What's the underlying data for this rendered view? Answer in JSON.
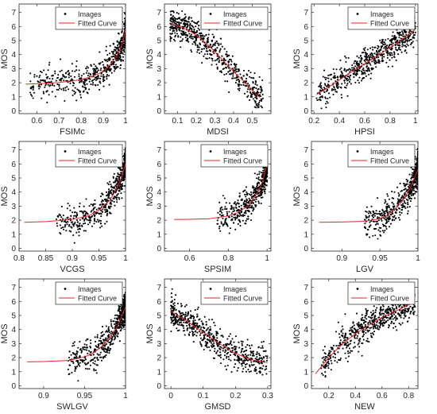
{
  "chart_data": [
    {
      "type": "scatter",
      "xlabel": "FSIMc",
      "ylabel": "MOS",
      "xlim": [
        0.52,
        1.0
      ],
      "ylim": [
        -0.2,
        7.6
      ],
      "xticks": [
        0.6,
        0.7,
        0.8,
        0.9,
        1
      ],
      "xtick_labels": [
        "0.6",
        "0.7",
        "0.8",
        "0.9",
        "1"
      ],
      "yticks": [
        0,
        1,
        2,
        3,
        4,
        5,
        6,
        7
      ],
      "legend": {
        "entries": [
          "Images",
          "Fitted Curve"
        ],
        "position": "top-right"
      },
      "points_extent": {
        "x": [
          0.57,
          1.0
        ]
      },
      "fitted_curve": {
        "x": [
          0.55,
          0.6,
          0.65,
          0.7,
          0.75,
          0.8,
          0.85,
          0.88,
          0.9,
          0.92,
          0.94,
          0.96,
          0.98,
          0.99,
          1.0
        ],
        "y": [
          1.9,
          1.93,
          1.97,
          2.02,
          2.1,
          2.22,
          2.45,
          2.65,
          2.85,
          3.1,
          3.45,
          3.9,
          4.55,
          5.05,
          5.8
        ]
      }
    },
    {
      "type": "scatter",
      "xlabel": "MDSI",
      "ylabel": "MOS",
      "xlim": [
        0.03,
        0.6
      ],
      "ylim": [
        -0.2,
        7.6
      ],
      "xticks": [
        0.1,
        0.2,
        0.3,
        0.4,
        0.5
      ],
      "xtick_labels": [
        "0.1",
        "0.2",
        "0.3",
        "0.4",
        "0.5"
      ],
      "yticks": [
        0,
        1,
        2,
        3,
        4,
        5,
        6,
        7
      ],
      "legend": {
        "entries": [
          "Images",
          "Fitted Curve"
        ],
        "position": "top-right"
      },
      "points_extent": {
        "x": [
          0.06,
          0.56
        ]
      },
      "fitted_curve": {
        "x": [
          0.06,
          0.1,
          0.15,
          0.2,
          0.25,
          0.3,
          0.35,
          0.4,
          0.45,
          0.5,
          0.54
        ],
        "y": [
          6.15,
          6.05,
          5.8,
          5.4,
          4.85,
          4.2,
          3.5,
          2.8,
          2.15,
          1.45,
          0.95
        ]
      }
    },
    {
      "type": "scatter",
      "xlabel": "HPSI",
      "ylabel": "MOS",
      "xlim": [
        0.18,
        1.02
      ],
      "ylim": [
        -0.2,
        7.6
      ],
      "xticks": [
        0.2,
        0.4,
        0.6,
        0.8,
        1
      ],
      "xtick_labels": [
        "0.2",
        "0.4",
        "0.6",
        "0.8",
        "1"
      ],
      "yticks": [
        0,
        1,
        2,
        3,
        4,
        5,
        6,
        7
      ],
      "legend": {
        "entries": [
          "Images",
          "Fitted Curve"
        ],
        "position": "top-right"
      },
      "points_extent": {
        "x": [
          0.22,
          1.0
        ]
      },
      "fitted_curve": {
        "x": [
          0.22,
          0.3,
          0.4,
          0.5,
          0.6,
          0.7,
          0.8,
          0.9,
          1.0
        ],
        "y": [
          1.15,
          1.6,
          2.2,
          2.8,
          3.35,
          3.9,
          4.5,
          5.1,
          5.8
        ]
      }
    },
    {
      "type": "scatter",
      "xlabel": "VCGS",
      "ylabel": "MOS",
      "xlim": [
        0.8,
        1.0
      ],
      "ylim": [
        -0.2,
        7.6
      ],
      "xticks": [
        0.8,
        0.85,
        0.9,
        0.95,
        1
      ],
      "xtick_labels": [
        "0.8",
        "0.85",
        "0.9",
        "0.95",
        "1"
      ],
      "yticks": [
        0,
        1,
        2,
        3,
        4,
        5,
        6,
        7
      ],
      "legend": {
        "entries": [
          "Images",
          "Fitted Curve"
        ],
        "position": "top-right"
      },
      "points_extent": {
        "x": [
          0.87,
          1.0
        ]
      },
      "fitted_curve": {
        "x": [
          0.81,
          0.85,
          0.9,
          0.93,
          0.95,
          0.97,
          0.98,
          0.99,
          1.0
        ],
        "y": [
          1.85,
          1.9,
          2.05,
          2.3,
          2.7,
          3.4,
          4.0,
          4.8,
          6.0
        ]
      }
    },
    {
      "type": "scatter",
      "xlabel": "SPSIM",
      "ylabel": "MOS",
      "xlim": [
        0.47,
        1.02
      ],
      "ylim": [
        -0.2,
        7.6
      ],
      "xticks": [
        0.6,
        0.8,
        1
      ],
      "xtick_labels": [
        "0.6",
        "0.8",
        "1"
      ],
      "yticks": [
        0,
        1,
        2,
        3,
        4,
        5,
        6,
        7
      ],
      "legend": {
        "entries": [
          "Images",
          "Fitted Curve"
        ],
        "position": "top-right"
      },
      "points_extent": {
        "x": [
          0.74,
          1.0
        ]
      },
      "fitted_curve": {
        "x": [
          0.52,
          0.6,
          0.7,
          0.8,
          0.85,
          0.9,
          0.93,
          0.96,
          0.98,
          1.0
        ],
        "y": [
          2.05,
          2.06,
          2.1,
          2.3,
          2.55,
          3.0,
          3.5,
          4.2,
          4.9,
          6.0
        ]
      }
    },
    {
      "type": "scatter",
      "xlabel": "LGV",
      "ylabel": "MOS",
      "xlim": [
        0.86,
        1.0
      ],
      "ylim": [
        -0.2,
        7.6
      ],
      "xticks": [
        0.9,
        0.95,
        1
      ],
      "xtick_labels": [
        "0.9",
        "0.95",
        "1"
      ],
      "yticks": [
        0,
        1,
        2,
        3,
        4,
        5,
        6,
        7
      ],
      "legend": {
        "entries": [
          "Images",
          "Fitted Curve"
        ],
        "position": "top-right"
      },
      "points_extent": {
        "x": [
          0.93,
          1.0
        ]
      },
      "fitted_curve": {
        "x": [
          0.87,
          0.9,
          0.93,
          0.95,
          0.96,
          0.97,
          0.98,
          0.99,
          1.0
        ],
        "y": [
          1.85,
          1.87,
          1.92,
          2.1,
          2.35,
          2.8,
          3.4,
          4.3,
          5.6
        ]
      }
    },
    {
      "type": "scatter",
      "xlabel": "SWLGV",
      "ylabel": "MOS",
      "xlim": [
        0.87,
        1.0
      ],
      "ylim": [
        -0.2,
        7.6
      ],
      "xticks": [
        0.9,
        0.95,
        1
      ],
      "xtick_labels": [
        "0.9",
        "0.95",
        "1"
      ],
      "yticks": [
        0,
        1,
        2,
        3,
        4,
        5,
        6,
        7
      ],
      "legend": {
        "entries": [
          "Images",
          "Fitted Curve"
        ],
        "position": "top-right"
      },
      "points_extent": {
        "x": [
          0.93,
          1.0
        ]
      },
      "fitted_curve": {
        "x": [
          0.88,
          0.9,
          0.93,
          0.95,
          0.96,
          0.97,
          0.98,
          0.99,
          1.0
        ],
        "y": [
          1.7,
          1.72,
          1.8,
          2.05,
          2.3,
          2.75,
          3.3,
          4.2,
          5.6
        ]
      }
    },
    {
      "type": "scatter",
      "xlabel": "GMSD",
      "ylabel": "MOS",
      "xlim": [
        -0.02,
        0.31
      ],
      "ylim": [
        -0.2,
        7.6
      ],
      "xticks": [
        0,
        0.1,
        0.2,
        0.3
      ],
      "xtick_labels": [
        "0",
        "0.1",
        "0.2",
        "0.3"
      ],
      "yticks": [
        0,
        1,
        2,
        3,
        4,
        5,
        6,
        7
      ],
      "legend": {
        "entries": [
          "Images",
          "Fitted Curve"
        ],
        "position": "top-right"
      },
      "points_extent": {
        "x": [
          0.0,
          0.3
        ]
      },
      "fitted_curve": {
        "x": [
          0,
          0.025,
          0.05,
          0.1,
          0.15,
          0.2,
          0.25,
          0.3
        ],
        "y": [
          5.3,
          4.95,
          4.6,
          3.8,
          3.0,
          2.3,
          1.85,
          1.65
        ]
      }
    },
    {
      "type": "scatter",
      "xlabel": "NEW",
      "ylabel": "MOS",
      "xlim": [
        0.07,
        0.87
      ],
      "ylim": [
        -0.2,
        7.6
      ],
      "xticks": [
        0.2,
        0.4,
        0.6,
        0.8
      ],
      "xtick_labels": [
        "0.2",
        "0.4",
        "0.6",
        "0.8"
      ],
      "yticks": [
        0,
        1,
        2,
        3,
        4,
        5,
        6,
        7
      ],
      "legend": {
        "entries": [
          "Images",
          "Fitted Curve"
        ],
        "position": "top-right"
      },
      "points_extent": {
        "x": [
          0.14,
          0.85
        ]
      },
      "fitted_curve": {
        "x": [
          0.1,
          0.2,
          0.3,
          0.4,
          0.5,
          0.6,
          0.7,
          0.8,
          0.85
        ],
        "y": [
          0.85,
          2.0,
          2.95,
          3.7,
          4.3,
          4.85,
          5.3,
          5.75,
          5.95
        ]
      }
    }
  ],
  "colors": {
    "points": "#000000",
    "curve": "#e8222a",
    "axes": "#262626",
    "background": "#ffffff"
  }
}
